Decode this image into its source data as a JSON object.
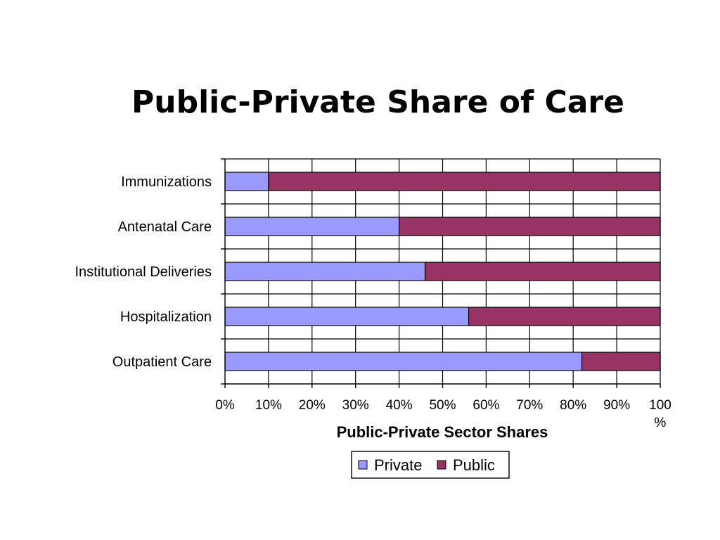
{
  "chart_data": {
    "type": "bar",
    "orientation": "horizontal",
    "stacked": true,
    "title": "Public-Private Share of Care",
    "xlabel": "Public-Private Sector Shares",
    "ylabel": "",
    "xlim": [
      0,
      100
    ],
    "x_tick_labels": [
      "0%",
      "10%",
      "20%",
      "30%",
      "40%",
      "50%",
      "60%",
      "70%",
      "80%",
      "90%",
      "100 %"
    ],
    "categories": [
      "Immunizations",
      "Antenatal Care",
      "Institutional Deliveries",
      "Hospitalization",
      "Outpatient Care"
    ],
    "series": [
      {
        "name": "Private",
        "color": "#9999ff",
        "values": [
          10,
          40,
          46,
          56,
          82
        ]
      },
      {
        "name": "Public",
        "color": "#993366",
        "values": [
          90,
          60,
          54,
          44,
          18
        ]
      }
    ],
    "grid": true,
    "legend_position": "bottom"
  }
}
